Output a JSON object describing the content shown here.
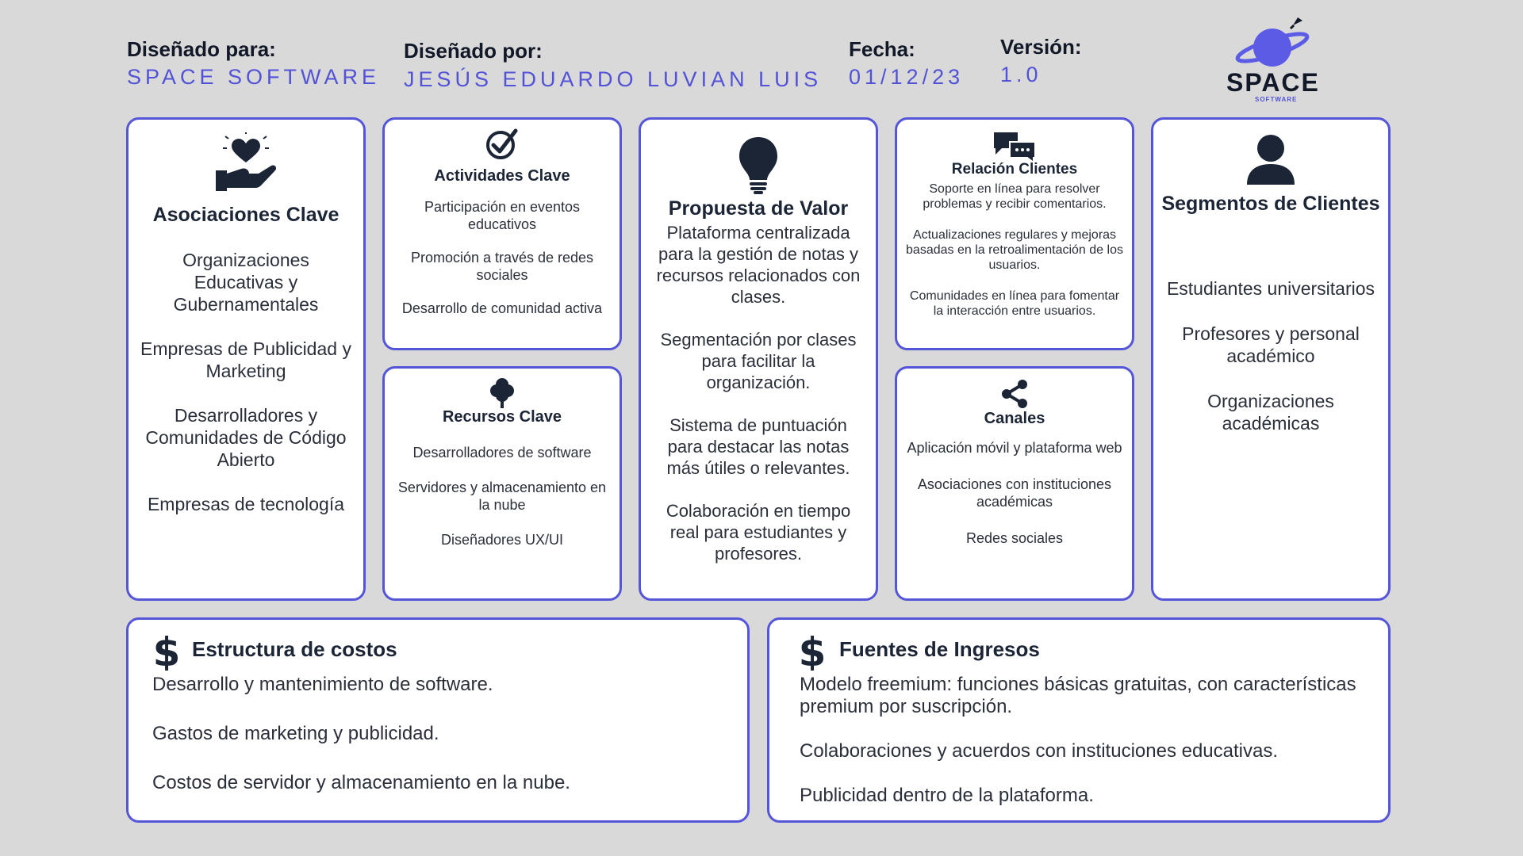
{
  "header": {
    "designed_for_label": "Diseñado para:",
    "designed_for_value": "SPACE SOFTWARE",
    "designed_by_label": "Diseñado por:",
    "designed_by_value": "JESÚS EDUARDO LUVIAN LUIS",
    "date_label": "Fecha:",
    "date_value": "01/12/23",
    "version_label": "Versión:",
    "version_value": "1.0"
  },
  "logo": {
    "word": "SPACE",
    "sub": "SOFTWARE"
  },
  "colors": {
    "background": "#d9d9d9",
    "border": "#5555d9",
    "accent": "#5252d6",
    "icon": "#1b2536"
  },
  "cards": {
    "key_partners": {
      "icon": "heart-hand-icon",
      "title": "Asociaciones Clave",
      "items": [
        "Organizaciones Educativas y Gubernamentales",
        "Empresas de Publicidad y Marketing",
        "Desarrolladores y Comunidades de Código Abierto",
        "Empresas de tecnología"
      ]
    },
    "key_activities": {
      "icon": "check-circle-icon",
      "title": "Actividades Clave",
      "items": [
        "Participación en eventos educativos",
        "Promoción a través de redes sociales",
        "Desarrollo de comunidad activa"
      ]
    },
    "key_resources": {
      "icon": "tree-icon",
      "title": "Recursos Clave",
      "items": [
        "Desarrolladores de software",
        "Servidores y almacenamiento en la nube",
        "Diseñadores UX/UI"
      ]
    },
    "value_proposition": {
      "icon": "lightbulb-icon",
      "title": "Propuesta de Valor",
      "items": [
        "Plataforma centralizada para la gestión de notas y recursos relacionados con clases.",
        "Segmentación por clases para facilitar la organización.",
        "Sistema de puntuación para destacar las notas más útiles o relevantes.",
        "Colaboración en tiempo real para estudiantes y profesores."
      ]
    },
    "customer_relationships": {
      "icon": "chat-bubbles-icon",
      "title": "Relación Clientes",
      "items": [
        "Soporte en línea para resolver problemas y recibir comentarios.",
        "Actualizaciones regulares y mejoras basadas en la retroalimentación de los usuarios.",
        "Comunidades en línea para fomentar la interacción entre usuarios."
      ]
    },
    "channels": {
      "icon": "share-icon",
      "title": "Canales",
      "items": [
        "Aplicación móvil y plataforma web",
        "Asociaciones con instituciones académicas",
        "Redes sociales"
      ]
    },
    "customer_segments": {
      "icon": "user-icon",
      "title": "Segmentos de Clientes",
      "items": [
        "Estudiantes universitarios",
        "Profesores y personal académico",
        "Organizaciones académicas"
      ]
    },
    "cost_structure": {
      "icon": "dollar-icon",
      "title": "Estructura de costos",
      "items": [
        "Desarrollo y mantenimiento de software.",
        "Gastos de marketing y publicidad.",
        "Costos de servidor y almacenamiento en la nube."
      ]
    },
    "revenue_streams": {
      "icon": "dollar-icon",
      "title": "Fuentes de Ingresos",
      "items": [
        "Modelo freemium: funciones básicas gratuitas, con características premium por suscripción.",
        "Colaboraciones y acuerdos con instituciones educativas.",
        "Publicidad dentro de la plataforma."
      ]
    }
  }
}
